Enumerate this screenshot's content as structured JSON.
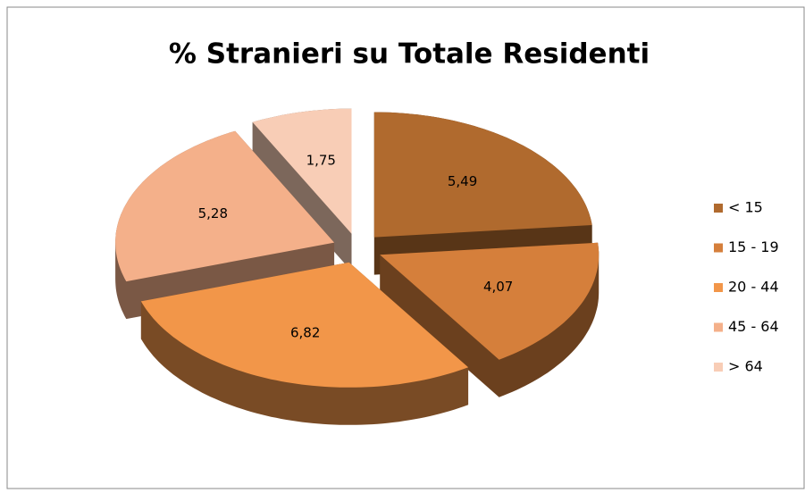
{
  "chart_data": {
    "type": "pie",
    "title": "% Stranieri su Totale Residenti",
    "categories": [
      "< 15",
      "15 - 19",
      "20 - 44",
      "45 - 64",
      "> 64"
    ],
    "values": [
      5.49,
      4.07,
      6.82,
      5.28,
      1.75
    ],
    "value_labels": [
      "5,49",
      "4,07",
      "6,82",
      "5,28",
      "1,75"
    ],
    "colors": [
      "#b06a2e",
      "#d57f3b",
      "#f29649",
      "#f4b08a",
      "#f8cdb6"
    ],
    "legend": "right"
  }
}
